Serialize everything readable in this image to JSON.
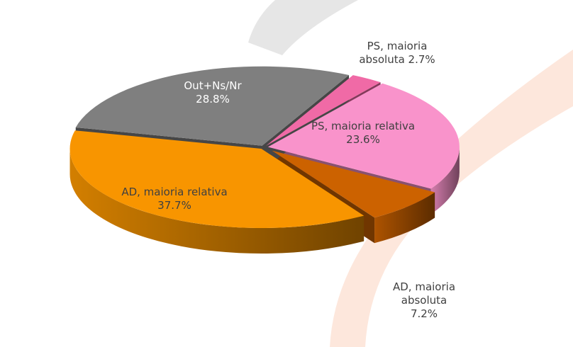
{
  "chart_data": {
    "type": "pie",
    "title": "",
    "slices": [
      {
        "label_lines": [
          "PS, maioria",
          "absoluta 2.7%"
        ],
        "category": "PS, maioria absoluta",
        "value": 2.7,
        "color": "#f06aa6"
      },
      {
        "label_lines": [
          "PS, maioria relativa",
          "23.6%"
        ],
        "category": "PS, maioria relativa",
        "value": 23.6,
        "color": "#f993cb"
      },
      {
        "label_lines": [
          "AD, maioria",
          "absoluta",
          "7.2%"
        ],
        "category": "AD, maioria absoluta",
        "value": 7.2,
        "color": "#cc6200"
      },
      {
        "label_lines": [
          "AD, maioria relativa",
          "37.7%"
        ],
        "category": "AD, maioria relativa",
        "value": 37.7,
        "color": "#f89500"
      },
      {
        "label_lines": [
          "Out+Ns/Nr",
          "28.8%"
        ],
        "category": "Out+Ns/Nr",
        "value": 28.8,
        "color": "#7f7f7f"
      }
    ]
  },
  "colors": {
    "label_dark": "#404040",
    "label_light": "#ffffff",
    "background_swoosh_gray": "#e6e6e6",
    "background_swoosh_peach": "#fde7dc"
  }
}
